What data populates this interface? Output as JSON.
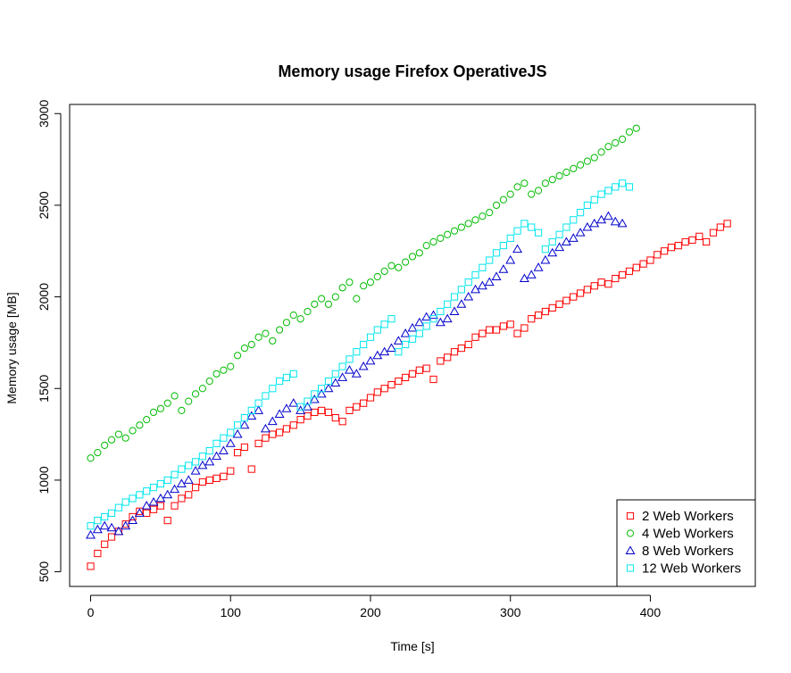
{
  "chart_data": {
    "type": "scatter",
    "title": "Memory usage Firefox OperativeJS",
    "xlabel": "Time [s]",
    "ylabel": "Memory usage [MB]",
    "xlim": [
      -15,
      475
    ],
    "ylim": [
      420,
      3050
    ],
    "xticks": [
      0,
      100,
      200,
      300,
      400
    ],
    "yticks": [
      500,
      1000,
      1500,
      2000,
      2500,
      3000
    ],
    "legend_position": "bottom-right",
    "series": [
      {
        "name": "2 Web Workers",
        "color": "#ff0000",
        "marker": "square",
        "x": [
          0,
          5,
          10,
          15,
          20,
          25,
          30,
          35,
          40,
          45,
          50,
          55,
          60,
          65,
          70,
          75,
          80,
          85,
          90,
          95,
          100,
          105,
          110,
          115,
          120,
          125,
          130,
          135,
          140,
          145,
          150,
          155,
          160,
          165,
          170,
          175,
          180,
          185,
          190,
          195,
          200,
          205,
          210,
          215,
          220,
          225,
          230,
          235,
          240,
          245,
          250,
          255,
          260,
          265,
          270,
          275,
          280,
          285,
          290,
          295,
          300,
          305,
          310,
          315,
          320,
          325,
          330,
          335,
          340,
          345,
          350,
          355,
          360,
          365,
          370,
          375,
          380,
          385,
          390,
          395,
          400,
          405,
          410,
          415,
          420,
          425,
          430,
          435,
          440,
          445,
          450,
          455
        ],
        "y": [
          530,
          600,
          650,
          690,
          720,
          760,
          800,
          830,
          820,
          840,
          860,
          780,
          860,
          900,
          920,
          960,
          990,
          1000,
          1010,
          1020,
          1050,
          1150,
          1180,
          1060,
          1200,
          1230,
          1250,
          1260,
          1280,
          1300,
          1330,
          1350,
          1370,
          1380,
          1370,
          1340,
          1320,
          1380,
          1400,
          1420,
          1450,
          1480,
          1500,
          1520,
          1540,
          1560,
          1580,
          1600,
          1610,
          1550,
          1650,
          1670,
          1700,
          1720,
          1740,
          1780,
          1800,
          1820,
          1820,
          1840,
          1850,
          1800,
          1830,
          1880,
          1900,
          1920,
          1940,
          1960,
          1980,
          2000,
          2020,
          2040,
          2060,
          2080,
          2070,
          2100,
          2120,
          2140,
          2160,
          2180,
          2200,
          2230,
          2250,
          2270,
          2280,
          2300,
          2310,
          2330,
          2300,
          2350,
          2380,
          2400
        ]
      },
      {
        "name": "4 Web Workers",
        "color": "#00bb00",
        "marker": "circle",
        "x": [
          0,
          5,
          10,
          15,
          20,
          25,
          30,
          35,
          40,
          45,
          50,
          55,
          60,
          65,
          70,
          75,
          80,
          85,
          90,
          95,
          100,
          105,
          110,
          115,
          120,
          125,
          130,
          135,
          140,
          145,
          150,
          155,
          160,
          165,
          170,
          175,
          180,
          185,
          190,
          195,
          200,
          205,
          210,
          215,
          220,
          225,
          230,
          235,
          240,
          245,
          250,
          255,
          260,
          265,
          270,
          275,
          280,
          285,
          290,
          295,
          300,
          305,
          310,
          315,
          320,
          325,
          330,
          335,
          340,
          345,
          350,
          355,
          360,
          365,
          370,
          375,
          380,
          385,
          390
        ],
        "y": [
          1120,
          1150,
          1190,
          1220,
          1250,
          1230,
          1270,
          1300,
          1330,
          1370,
          1390,
          1420,
          1460,
          1380,
          1430,
          1470,
          1500,
          1540,
          1580,
          1600,
          1620,
          1680,
          1720,
          1740,
          1780,
          1800,
          1760,
          1820,
          1860,
          1900,
          1880,
          1920,
          1960,
          1990,
          1960,
          2000,
          2050,
          2080,
          1990,
          2060,
          2080,
          2110,
          2140,
          2170,
          2160,
          2190,
          2220,
          2240,
          2280,
          2300,
          2320,
          2340,
          2360,
          2380,
          2400,
          2420,
          2440,
          2460,
          2500,
          2530,
          2560,
          2600,
          2620,
          2560,
          2580,
          2620,
          2640,
          2660,
          2680,
          2700,
          2720,
          2740,
          2760,
          2790,
          2820,
          2840,
          2860,
          2900,
          2920
        ]
      },
      {
        "name": "8 Web Workers",
        "color": "#0000cc",
        "marker": "triangle",
        "x": [
          0,
          5,
          10,
          15,
          20,
          25,
          30,
          35,
          40,
          45,
          50,
          55,
          60,
          65,
          70,
          75,
          80,
          85,
          90,
          95,
          100,
          105,
          110,
          115,
          120,
          125,
          130,
          135,
          140,
          145,
          150,
          155,
          160,
          165,
          170,
          175,
          180,
          185,
          190,
          195,
          200,
          205,
          210,
          215,
          220,
          225,
          230,
          235,
          240,
          245,
          250,
          255,
          260,
          265,
          270,
          275,
          280,
          285,
          290,
          295,
          300,
          305,
          310,
          315,
          320,
          325,
          330,
          335,
          340,
          345,
          350,
          355,
          360,
          365,
          370,
          375,
          380
        ],
        "y": [
          700,
          730,
          750,
          740,
          720,
          750,
          780,
          820,
          860,
          880,
          900,
          920,
          950,
          980,
          1000,
          1050,
          1080,
          1100,
          1130,
          1160,
          1200,
          1250,
          1300,
          1350,
          1380,
          1280,
          1320,
          1360,
          1390,
          1420,
          1380,
          1400,
          1440,
          1470,
          1500,
          1530,
          1560,
          1600,
          1580,
          1620,
          1650,
          1680,
          1700,
          1720,
          1760,
          1800,
          1830,
          1860,
          1890,
          1900,
          1860,
          1880,
          1920,
          1960,
          2000,
          2040,
          2060,
          2080,
          2110,
          2150,
          2200,
          2260,
          2100,
          2120,
          2160,
          2200,
          2240,
          2270,
          2300,
          2320,
          2350,
          2380,
          2400,
          2420,
          2440,
          2410,
          2400
        ]
      },
      {
        "name": "12 Web Workers",
        "color": "#00e5ee",
        "marker": "square",
        "x": [
          0,
          5,
          10,
          15,
          20,
          25,
          30,
          35,
          40,
          45,
          50,
          55,
          60,
          65,
          70,
          75,
          80,
          85,
          90,
          95,
          100,
          105,
          110,
          115,
          120,
          125,
          130,
          135,
          140,
          145,
          150,
          155,
          160,
          165,
          170,
          175,
          180,
          185,
          190,
          195,
          200,
          205,
          210,
          215,
          220,
          225,
          230,
          235,
          240,
          245,
          250,
          255,
          260,
          265,
          270,
          275,
          280,
          285,
          290,
          295,
          300,
          305,
          310,
          315,
          320,
          325,
          330,
          335,
          340,
          345,
          350,
          355,
          360,
          365,
          370,
          375,
          380,
          385
        ],
        "y": [
          750,
          780,
          800,
          820,
          850,
          880,
          900,
          920,
          940,
          960,
          980,
          1000,
          1030,
          1060,
          1080,
          1100,
          1130,
          1160,
          1200,
          1230,
          1260,
          1300,
          1340,
          1380,
          1420,
          1460,
          1500,
          1540,
          1560,
          1580,
          1400,
          1430,
          1470,
          1500,
          1540,
          1580,
          1620,
          1660,
          1700,
          1740,
          1780,
          1820,
          1850,
          1880,
          1700,
          1740,
          1770,
          1800,
          1840,
          1880,
          1920,
          1960,
          2000,
          2040,
          2080,
          2120,
          2160,
          2200,
          2240,
          2280,
          2320,
          2360,
          2400,
          2380,
          2350,
          2260,
          2300,
          2340,
          2380,
          2420,
          2460,
          2500,
          2530,
          2560,
          2580,
          2600,
          2620,
          2600
        ]
      }
    ]
  }
}
